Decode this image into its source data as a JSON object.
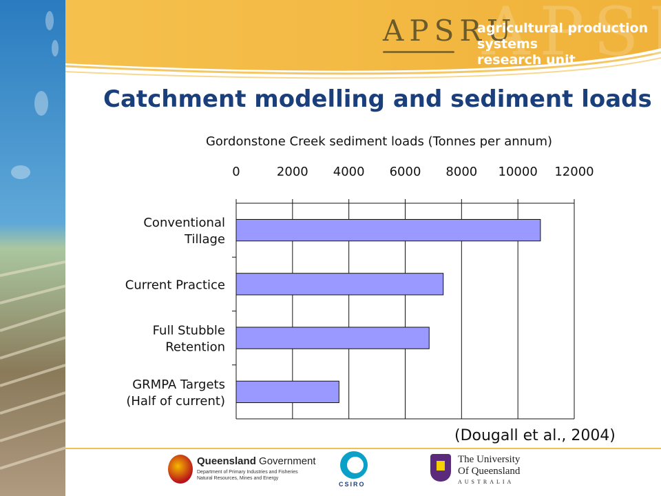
{
  "header": {
    "logo_text": "APSRU",
    "unit_name_line1": "agricultural production systems",
    "unit_name_line2": "research unit"
  },
  "slide_title": "Catchment modelling and sediment loads",
  "citation": "(Dougall et al., 2004)",
  "colors": {
    "title": "#1a3f7a",
    "bar": "#9999ff",
    "banner": "#f3b843"
  },
  "chart_data": {
    "type": "bar",
    "orientation": "horizontal",
    "title": "Gordonstone Creek sediment loads (Tonnes per annum)",
    "categories": [
      [
        "Conventional",
        "Tillage"
      ],
      [
        "Current Practice"
      ],
      [
        "Full Stubble",
        "Retention"
      ],
      [
        "GRMPA Targets",
        "(Half of current)"
      ]
    ],
    "values": [
      10800,
      7350,
      6850,
      3650
    ],
    "xlim": [
      0,
      12000
    ],
    "xticks": [
      0,
      2000,
      4000,
      6000,
      8000,
      10000,
      12000
    ],
    "xaxis_position": "top",
    "grid": true,
    "bar_color": "#9999ff"
  },
  "footer": {
    "qld_gov_bold": "Queensland",
    "qld_gov_rest": " Government",
    "qld_dept_line1": "Department of Primary Industries and Fisheries",
    "qld_dept_line2": "Natural Resources, Mines and Energy",
    "csiro": "CSIRO",
    "uq_line1": "The University",
    "uq_line2": "Of Queensland",
    "uq_line3": "AUSTRALIA"
  }
}
